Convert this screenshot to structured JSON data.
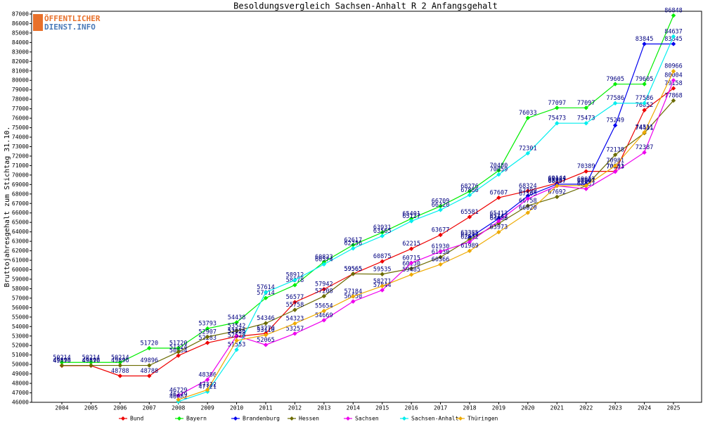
{
  "logo": {
    "line1": "ÖFFENTLICHER",
    "line2": "DIENST.INFO"
  },
  "chart_data": {
    "type": "line",
    "title": "Besoldungsvergleich Sachsen-Anhalt R 2 Anfangsgehalt",
    "y_label": "Bruttojahresgehalt zum Stichtag 31.10.",
    "categories": [
      "2004",
      "2005",
      "2006",
      "2007",
      "2008",
      "2009",
      "2010",
      "2011",
      "2012",
      "2013",
      "2014",
      "2015",
      "2016",
      "2017",
      "2018",
      "2019",
      "2020",
      "2021",
      "2022",
      "2023",
      "2024",
      "2025"
    ],
    "ylim": [
      46000,
      87000
    ],
    "yticks": [
      46000,
      47000,
      48000,
      49000,
      50000,
      51000,
      52000,
      53000,
      54000,
      55000,
      56000,
      57000,
      58000,
      59000,
      60000,
      61000,
      62000,
      63000,
      64000,
      65000,
      66000,
      67000,
      68000,
      69000,
      70000,
      71000,
      72000,
      73000,
      74000,
      75000,
      76000,
      77000,
      78000,
      79000,
      80000,
      81000,
      82000,
      83000,
      84000,
      85000,
      86000,
      87000
    ],
    "grid": false,
    "legend": "bottom",
    "series": [
      {
        "name": "Bund",
        "color": "#ee0000",
        "values": [
          49870,
          49870,
          48788,
          48788,
          50934,
          52283,
          52955,
          53270,
          56577,
          57942,
          59565,
          60875,
          62215,
          63677,
          65581,
          67607,
          68324,
          69144,
          70389,
          70391,
          76852,
          79158
        ]
      },
      {
        "name": "Bayern",
        "color": "#00ee00",
        "values": [
          50214,
          50214,
          50214,
          51720,
          51720,
          53793,
          54438,
          57014,
          58378,
          60823,
          62617,
          63931,
          65401,
          66709,
          68276,
          70480,
          76033,
          77097,
          77097,
          79605,
          79605,
          86848
        ]
      },
      {
        "name": "Brandenburg",
        "color": "#0000ee",
        "values": [
          null,
          null,
          null,
          null,
          null,
          null,
          null,
          null,
          null,
          null,
          null,
          null,
          null,
          null,
          63385,
          65413,
          67799,
          69037,
          69037,
          75249,
          83845,
          83845
        ]
      },
      {
        "name": "Hessen",
        "color": "#6b6b00",
        "values": [
          49896,
          49896,
          49896,
          49896,
          51324,
          52907,
          53542,
          54346,
          55758,
          57208,
          59565,
          59535,
          60130,
          61330,
          63212,
          64888,
          66758,
          67692,
          68867,
          72138,
          74431,
          77868
        ]
      },
      {
        "name": "Sachsen",
        "color": "#ee00ee",
        "values": [
          null,
          null,
          null,
          null,
          46729,
          48386,
          53026,
          52065,
          53257,
          54669,
          56650,
          57844,
          60715,
          61930,
          62932,
          65142,
          67505,
          68857,
          68537,
          70353,
          72387,
          80004
        ]
      },
      {
        "name": "Sachsen-Anhalt",
        "color": "#00eeee",
        "values": [
          null,
          null,
          null,
          null,
          46082,
          47121,
          51553,
          57614,
          58912,
          60574,
          62256,
          63565,
          65127,
          66320,
          67886,
          70059,
          72301,
          75473,
          75473,
          77586,
          77586,
          84637
        ]
      },
      {
        "name": "Thüringen",
        "color": "#eeaa00",
        "values": [
          null,
          null,
          null,
          null,
          46279,
          47322,
          52528,
          53110,
          54323,
          55654,
          57184,
          58271,
          59485,
          60566,
          61989,
          63973,
          66020,
          68867,
          68887,
          70981,
          74511,
          80966
        ]
      }
    ]
  }
}
